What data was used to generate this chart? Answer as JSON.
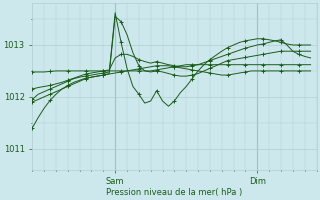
{
  "title": "Pression niveau de la mer( hPa )",
  "bg_color": "#cce8ec",
  "line_color": "#1a5c1a",
  "grid_color": "#b0cdd0",
  "yticks": [
    1011,
    1012,
    1013
  ],
  "ylim": [
    1010.6,
    1013.8
  ],
  "xlim": [
    0,
    48
  ],
  "sam_x": 14,
  "dim_x": 38,
  "series": [
    {
      "x": [
        0,
        1,
        2,
        3,
        4,
        5,
        6,
        7,
        8,
        9,
        10,
        11,
        12,
        13,
        14,
        15,
        16,
        17,
        18,
        19,
        20,
        21,
        22,
        23,
        24,
        25,
        26,
        27,
        28,
        29,
        30,
        31,
        32,
        33,
        34,
        35,
        36,
        37,
        38,
        39,
        40,
        41,
        42,
        43,
        44,
        45,
        46,
        47
      ],
      "y": [
        1012.48,
        1012.48,
        1012.48,
        1012.49,
        1012.5,
        1012.5,
        1012.5,
        1012.5,
        1012.5,
        1012.5,
        1012.5,
        1012.5,
        1012.5,
        1012.5,
        1012.5,
        1012.5,
        1012.5,
        1012.5,
        1012.5,
        1012.5,
        1012.5,
        1012.52,
        1012.54,
        1012.56,
        1012.58,
        1012.6,
        1012.62,
        1012.62,
        1012.62,
        1012.62,
        1012.62,
        1012.62,
        1012.62,
        1012.62,
        1012.62,
        1012.62,
        1012.62,
        1012.62,
        1012.62,
        1012.62,
        1012.62,
        1012.62,
        1012.62,
        1012.62,
        1012.62,
        1012.62,
        1012.62,
        1012.62
      ]
    },
    {
      "x": [
        0,
        1,
        2,
        3,
        4,
        5,
        6,
        7,
        8,
        9,
        10,
        11,
        12,
        13,
        14,
        15,
        16,
        17,
        18,
        19,
        20,
        21,
        22,
        23,
        24,
        25,
        26,
        27,
        28,
        29,
        30,
        31,
        32,
        33,
        34,
        35,
        36,
        37,
        38,
        39,
        40,
        41,
        42,
        43,
        44,
        45,
        46,
        47
      ],
      "y": [
        1011.9,
        1011.95,
        1012.0,
        1012.05,
        1012.1,
        1012.15,
        1012.2,
        1012.25,
        1012.3,
        1012.35,
        1012.38,
        1012.4,
        1012.42,
        1012.45,
        1013.55,
        1013.45,
        1013.2,
        1012.85,
        1012.6,
        1012.5,
        1012.48,
        1012.5,
        1012.48,
        1012.45,
        1012.42,
        1012.4,
        1012.4,
        1012.42,
        1012.45,
        1012.5,
        1012.55,
        1012.6,
        1012.65,
        1012.7,
        1012.72,
        1012.74,
        1012.76,
        1012.78,
        1012.8,
        1012.82,
        1012.84,
        1012.86,
        1012.88,
        1012.88,
        1012.88,
        1012.88,
        1012.88,
        1012.88
      ]
    },
    {
      "x": [
        0,
        1,
        2,
        3,
        4,
        5,
        6,
        7,
        8,
        9,
        10,
        11,
        12,
        13,
        14,
        15,
        16,
        17,
        18,
        19,
        20,
        21,
        22,
        23,
        24,
        25,
        26,
        27,
        28,
        29,
        30,
        31,
        32,
        33,
        34,
        35,
        36,
        37,
        38,
        39,
        40,
        41,
        42,
        43,
        44,
        45,
        46,
        47
      ],
      "y": [
        1011.95,
        1012.05,
        1012.1,
        1012.15,
        1012.2,
        1012.25,
        1012.3,
        1012.35,
        1012.38,
        1012.4,
        1012.42,
        1012.44,
        1012.46,
        1012.48,
        1013.62,
        1013.05,
        1012.55,
        1012.2,
        1012.05,
        1011.88,
        1011.92,
        1012.12,
        1011.92,
        1011.82,
        1011.92,
        1012.08,
        1012.2,
        1012.35,
        1012.5,
        1012.62,
        1012.72,
        1012.8,
        1012.88,
        1012.95,
        1013.0,
        1013.05,
        1013.08,
        1013.1,
        1013.12,
        1013.12,
        1013.1,
        1013.08,
        1013.05,
        1013.02,
        1013.0,
        1013.0,
        1013.0,
        1013.0
      ]
    },
    {
      "x": [
        0,
        1,
        2,
        3,
        4,
        5,
        6,
        7,
        8,
        9,
        10,
        11,
        12,
        13,
        14,
        15,
        16,
        17,
        18,
        19,
        20,
        21,
        22,
        23,
        24,
        25,
        26,
        27,
        28,
        29,
        30,
        31,
        32,
        33,
        34,
        35,
        36,
        37,
        38,
        39,
        40,
        41,
        42,
        43,
        44,
        45,
        46,
        47
      ],
      "y": [
        1012.15,
        1012.18,
        1012.2,
        1012.22,
        1012.25,
        1012.28,
        1012.32,
        1012.36,
        1012.4,
        1012.44,
        1012.46,
        1012.48,
        1012.5,
        1012.52,
        1012.75,
        1012.82,
        1012.82,
        1012.78,
        1012.72,
        1012.68,
        1012.65,
        1012.68,
        1012.65,
        1012.62,
        1012.6,
        1012.58,
        1012.58,
        1012.6,
        1012.62,
        1012.66,
        1012.7,
        1012.74,
        1012.78,
        1012.82,
        1012.86,
        1012.9,
        1012.94,
        1012.97,
        1013.0,
        1013.02,
        1013.05,
        1013.08,
        1013.1,
        1013.0,
        1012.88,
        1012.82,
        1012.78,
        1012.75
      ]
    },
    {
      "x": [
        0,
        1,
        2,
        3,
        4,
        5,
        6,
        7,
        8,
        9,
        10,
        11,
        12,
        13,
        14,
        15,
        16,
        17,
        18,
        19,
        20,
        21,
        22,
        23,
        24,
        25,
        26,
        27,
        28,
        29,
        30,
        31,
        32,
        33,
        34,
        35,
        36,
        37,
        38,
        39,
        40,
        41,
        42,
        43,
        44,
        45,
        46,
        47
      ],
      "y": [
        1011.4,
        1011.6,
        1011.78,
        1011.93,
        1012.05,
        1012.15,
        1012.22,
        1012.28,
        1012.32,
        1012.36,
        1012.38,
        1012.4,
        1012.42,
        1012.44,
        1012.46,
        1012.48,
        1012.5,
        1012.52,
        1012.54,
        1012.56,
        1012.58,
        1012.6,
        1012.6,
        1012.6,
        1012.58,
        1012.56,
        1012.54,
        1012.52,
        1012.5,
        1012.48,
        1012.46,
        1012.44,
        1012.42,
        1012.42,
        1012.44,
        1012.46,
        1012.48,
        1012.5,
        1012.5,
        1012.5,
        1012.5,
        1012.5,
        1012.5,
        1012.5,
        1012.5,
        1012.5,
        1012.5,
        1012.5
      ]
    }
  ]
}
